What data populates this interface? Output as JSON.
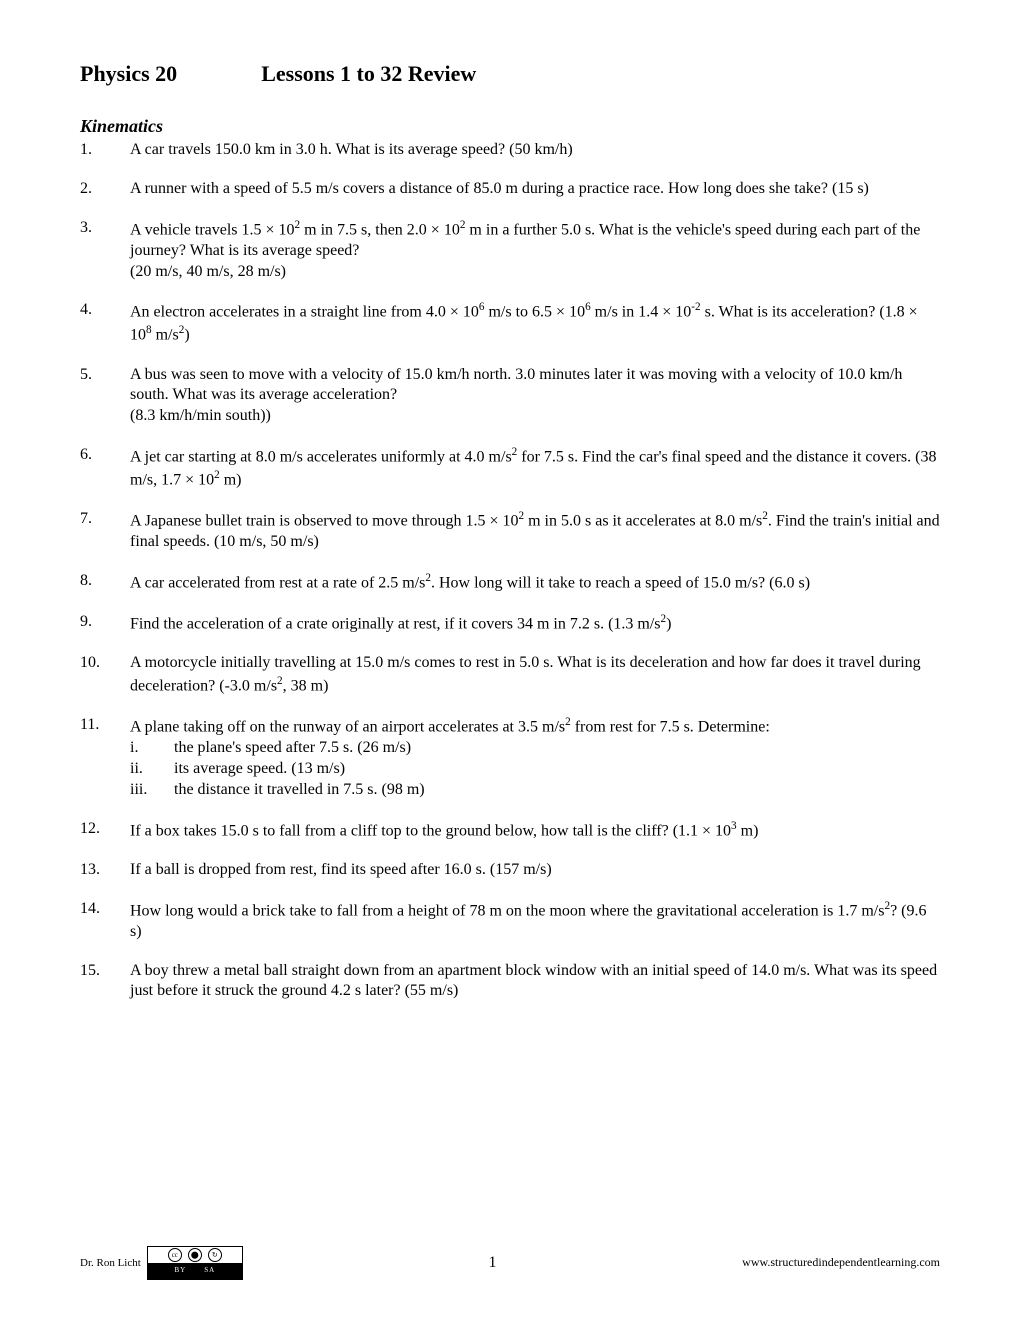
{
  "header": {
    "course": "Physics 20",
    "lessons": "Lessons 1 to 32 Review"
  },
  "section": "Kinematics",
  "problems": [
    {
      "num": "1.",
      "html": "A car travels 150.0 km in 3.0 h.  What is its average speed? (50 km/h)"
    },
    {
      "num": "2.",
      "html": "A runner with a speed of 5.5 m/s covers a distance of 85.0 m during a practice race. How long does she take? (15 s)"
    },
    {
      "num": "3.",
      "html": "A vehicle travels 1.5 × 10<sup>2</sup> m in 7.5 s, then 2.0 × 10<sup>2</sup> m in a further 5.0 s.  What is the vehicle's speed during each part of the journey?  What is its average speed?<br>(20 m/s, 40 m/s, 28 m/s)"
    },
    {
      "num": "4.",
      "html": "An electron accelerates in a straight line from 4.0 × 10<sup>6</sup> m/s to 6.5 × 10<sup>6</sup> m/s in 1.4 × 10<sup>-2</sup> s.  What is its acceleration? (1.8 × 10<sup>8</sup> m/s<sup>2</sup>)"
    },
    {
      "num": "5.",
      "html": "A bus was seen to move with a velocity of 15.0 km/h north.  3.0 minutes later it was moving with a velocity of 10.0 km/h south.  What was its average acceleration?<br>(8.3 km/h/min south))"
    },
    {
      "num": "6.",
      "html": "A jet car starting at 8.0 m/s accelerates uniformly at 4.0 m/s<sup>2</sup> for 7.5 s.  Find the car's final speed and the distance it covers. (38 m/s, 1.7 × 10<sup>2</sup> m)"
    },
    {
      "num": "7.",
      "html": "A Japanese bullet train is observed to move through 1.5 × 10<sup>2</sup> m in 5.0 s as it accelerates at 8.0 m/s<sup>2</sup>. Find the train's initial and final speeds. (10 m/s, 50 m/s)"
    },
    {
      "num": "8.",
      "html": "A car accelerated from rest at a rate of 2.5 m/s<sup>2</sup>.  How long will it take to reach a speed of 15.0 m/s? (6.0 s)"
    },
    {
      "num": "9.",
      "html": "Find the acceleration of a crate originally at rest, if it covers 34 m in 7.2 s. (1.3 m/s<sup>2</sup>)"
    },
    {
      "num": "10.",
      "html": "A motorcycle initially travelling at 15.0 m/s comes to rest in 5.0 s.  What is its deceleration and how far does it travel during deceleration? (-3.0 m/s<sup>2</sup>, 38 m)"
    },
    {
      "num": "11.",
      "html": "A plane taking off on the runway of an airport accelerates at 3.5 m/s<sup>2</sup> from rest for 7.5 s. Determine:",
      "subs": [
        {
          "roman": "i.",
          "html": "the plane's speed after 7.5 s. (26 m/s)"
        },
        {
          "roman": "ii.",
          "html": "its average speed. (13 m/s)"
        },
        {
          "roman": "iii.",
          "html": "the distance it travelled in 7.5 s. (98 m)"
        }
      ]
    },
    {
      "num": "12.",
      "html": "If a box takes 15.0 s to fall from a cliff top to the ground below, how tall is the cliff? (1.1 × 10<sup>3</sup> m)"
    },
    {
      "num": "13.",
      "html": "If a ball is dropped from rest, find its speed after 16.0 s. (157 m/s)"
    },
    {
      "num": "14.",
      "html": "How long would a brick take to fall from a height of 78 m on the moon where the gravitational acceleration is 1.7 m/s<sup>2</sup>? (9.6 s)"
    },
    {
      "num": "15.",
      "html": "A boy threw a metal ball straight down from an apartment block window with an initial speed of 14.0 m/s.  What was its speed just before it struck the ground 4.2 s later? (55 m/s)"
    }
  ],
  "footer": {
    "author": "Dr. Ron Licht",
    "cc_by": "BY",
    "cc_sa": "SA",
    "page": "1",
    "url": "www.structuredindependentlearning.com"
  }
}
